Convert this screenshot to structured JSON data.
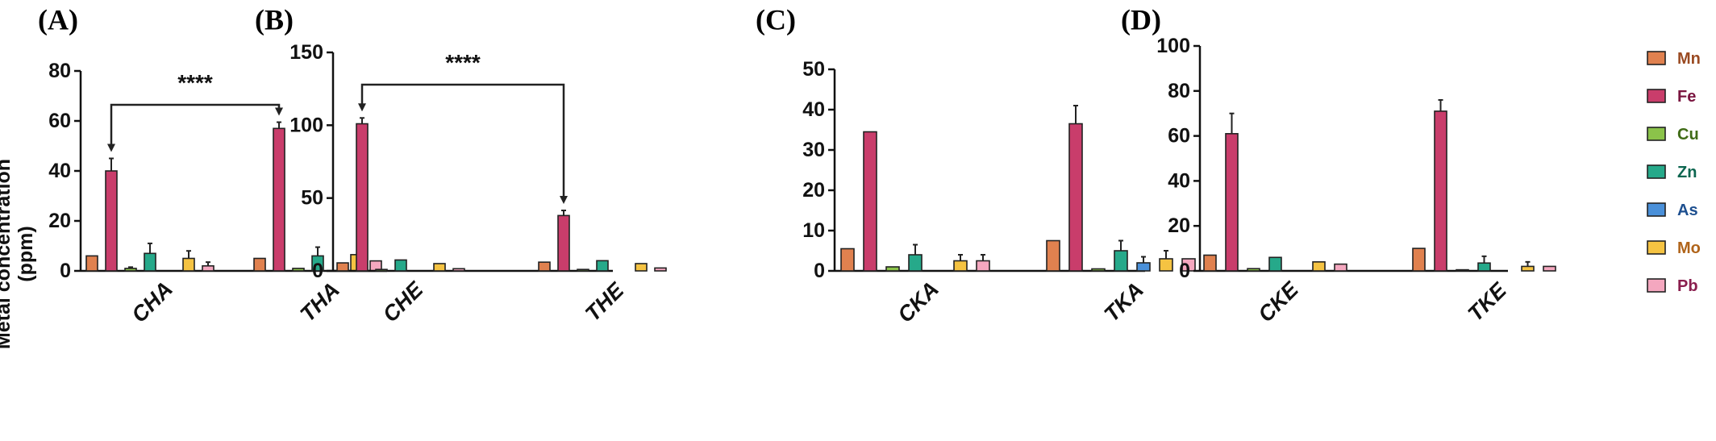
{
  "chart_data": {
    "type": "bar",
    "ylabel": "Metal concentration (ppm)",
    "ylabel_lines": [
      "Metal concentration",
      "(ppm)"
    ],
    "legend": {
      "placement": "right",
      "entries": [
        {
          "name": "Mn",
          "color": "#e0814f",
          "text_color": "#9a4a22"
        },
        {
          "name": "Fe",
          "color": "#c93d6b",
          "text_color": "#7a1540"
        },
        {
          "name": "Cu",
          "color": "#8bc34a",
          "text_color": "#3f6b16"
        },
        {
          "name": "Zn",
          "color": "#26a98a",
          "text_color": "#0d6650"
        },
        {
          "name": "As",
          "color": "#4a90d9",
          "text_color": "#1d4f8f"
        },
        {
          "name": "Mo",
          "color": "#f5c342",
          "text_color": "#b0641a"
        },
        {
          "name": "Pb",
          "color": "#f4a7bf",
          "text_color": "#8a1e4e"
        }
      ]
    },
    "panels": [
      {
        "label": "(A)",
        "ylim": [
          0,
          80
        ],
        "yticks": [
          0,
          20,
          40,
          60,
          80
        ],
        "categories": [
          {
            "name": "CHA",
            "values": [
              6,
              40,
              1,
              7,
              0,
              5,
              2
            ],
            "errors": [
              0,
              5,
              0.5,
              4,
              0,
              3,
              1.5
            ]
          },
          {
            "name": "THA",
            "values": [
              5,
              57,
              1,
              6,
              0,
              6.5,
              4
            ],
            "errors": [
              0,
              2.5,
              0,
              3.5,
              0,
              0,
              0
            ]
          }
        ],
        "significance": {
          "text": "****",
          "from": 0,
          "to": 1
        }
      },
      {
        "label": "(B)",
        "ylim": [
          0,
          150
        ],
        "yticks": [
          0,
          50,
          100,
          150
        ],
        "categories": [
          {
            "name": "CHE",
            "values": [
              5.5,
              101,
              1,
              7.5,
              0,
              5,
              1.5
            ],
            "errors": [
              0,
              4,
              0,
              0,
              0,
              0,
              0
            ]
          },
          {
            "name": "THE",
            "values": [
              6,
              38,
              1,
              7,
              0,
              5,
              2
            ],
            "errors": [
              0,
              3.5,
              0,
              0,
              0,
              0,
              0
            ]
          }
        ],
        "significance": {
          "text": "****",
          "from": 0,
          "to": 1
        }
      },
      {
        "label": "(C)",
        "ylim": [
          0,
          50
        ],
        "yticks": [
          0,
          10,
          20,
          30,
          40,
          50
        ],
        "categories": [
          {
            "name": "CKA",
            "values": [
              5.5,
              34.5,
              1,
              4,
              0,
              2.5,
              2.5
            ],
            "errors": [
              0,
              0,
              0,
              2.5,
              0,
              1.5,
              1.5
            ]
          },
          {
            "name": "TKA",
            "values": [
              7.5,
              36.5,
              0.5,
              5,
              2,
              3,
              3
            ],
            "errors": [
              0,
              4.5,
              0,
              2.5,
              1.5,
              2,
              0
            ]
          }
        ]
      },
      {
        "label": "(D)",
        "ylim": [
          0,
          100
        ],
        "yticks": [
          0,
          20,
          40,
          60,
          80,
          100
        ],
        "categories": [
          {
            "name": "CKE",
            "values": [
              7,
              61,
              1,
              6,
              0,
              4,
              3
            ],
            "errors": [
              0,
              9,
              0,
              0,
              0,
              0,
              0
            ]
          },
          {
            "name": "TKE",
            "values": [
              10,
              71,
              0.5,
              3.5,
              0,
              2,
              2
            ],
            "errors": [
              0,
              5,
              0,
              3,
              0,
              2,
              0
            ]
          }
        ]
      }
    ]
  }
}
